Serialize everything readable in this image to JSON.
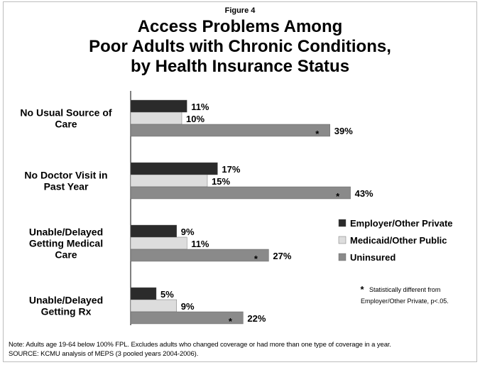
{
  "chart_data": {
    "type": "bar",
    "orientation": "horizontal",
    "figure_label": "Figure 4",
    "title_lines": [
      "Access Problems Among",
      "Poor Adults with Chronic Conditions,",
      "by Health Insurance Status"
    ],
    "categories": [
      {
        "lines": [
          "No Usual Source of",
          "Care"
        ]
      },
      {
        "lines": [
          "No Doctor Visit in",
          "Past Year"
        ]
      },
      {
        "lines": [
          "Unable/Delayed",
          "Getting Medical",
          "Care"
        ]
      },
      {
        "lines": [
          "Unable/Delayed",
          "Getting Rx"
        ]
      }
    ],
    "series": [
      {
        "name": "Employer/Other Private",
        "color": "#2b2b2b",
        "values": [
          11,
          17,
          9,
          5
        ],
        "labels": [
          "11%",
          "17%",
          "9%",
          "5%"
        ]
      },
      {
        "name": "Medicaid/Other Public",
        "color": "#dddddd",
        "values": [
          10,
          15,
          11,
          9
        ],
        "labels": [
          "10%",
          "15%",
          "11%",
          "9%"
        ]
      },
      {
        "name": "Uninsured",
        "color": "#8a8a8a",
        "values": [
          39,
          43,
          27,
          22
        ],
        "labels": [
          "39%",
          "43%",
          "27%",
          "22%"
        ],
        "significant": [
          true,
          true,
          true,
          true
        ]
      }
    ],
    "xlim": [
      0,
      50
    ],
    "grid": false,
    "legend_position": "right",
    "significance_marker": "*",
    "significance_note_lines": [
      "Statistically different from",
      "Employer/Other Private, p<.05."
    ]
  },
  "notes": [
    "Note: Adults age 19-64 below 100% FPL. Excludes adults who changed coverage or had more than one type of coverage in a year.",
    "SOURCE: KCMU analysis of MEPS (3 pooled years 2004-2006)."
  ]
}
